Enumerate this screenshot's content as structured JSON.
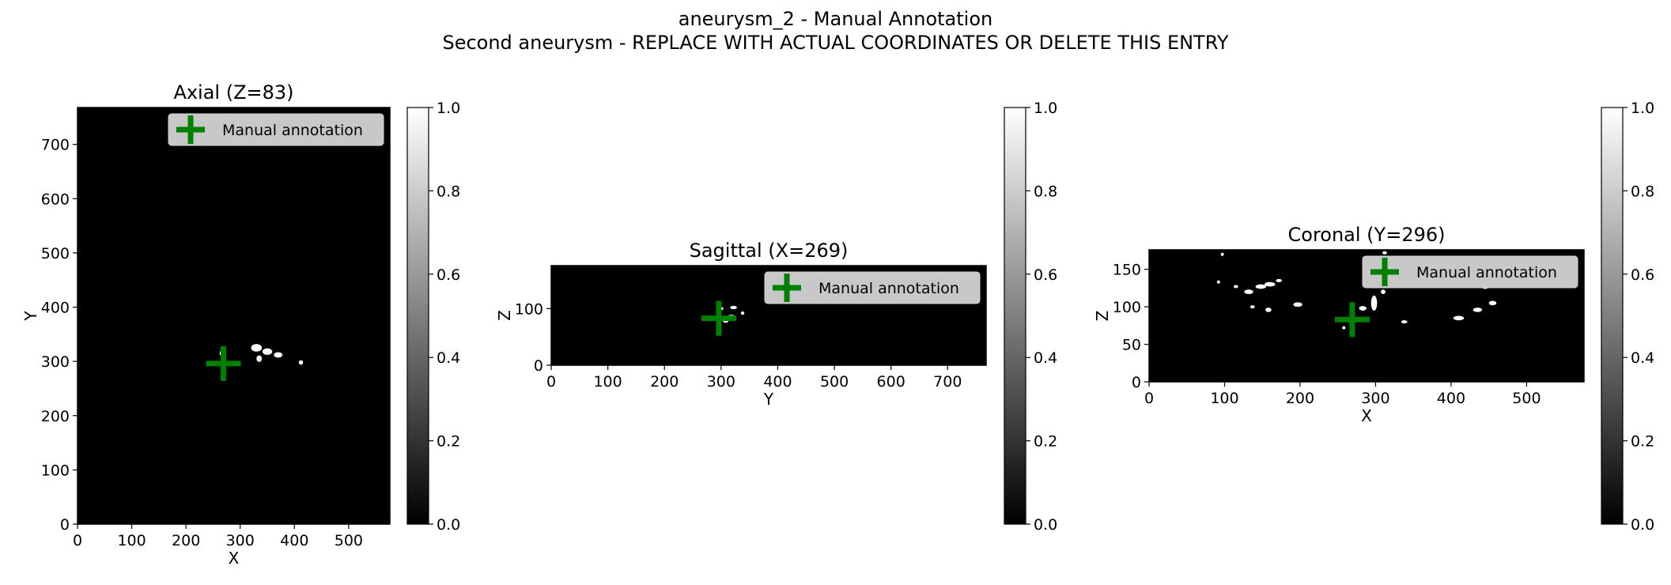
{
  "figure": {
    "title": "aneurysm_2 - Manual Annotation",
    "subtitle": "Second aneurysm - REPLACE WITH ACTUAL COORDINATES OR DELETE THIS ENTRY"
  },
  "colors": {
    "marker": "#008000",
    "background": "#000000",
    "vessel": "#ffffff",
    "legend_bg": "#c8c8c8"
  },
  "chart_data": [
    {
      "type": "heatmap",
      "title": "Axial (Z=83)",
      "xlabel": "X",
      "ylabel": "Y",
      "xlim": [
        0,
        576
      ],
      "ylim": [
        0,
        768
      ],
      "xticks": [
        0,
        100,
        200,
        300,
        400,
        500
      ],
      "yticks": [
        0,
        100,
        200,
        300,
        400,
        500,
        600,
        700
      ],
      "legend": {
        "label": "Manual annotation",
        "placement": "upper-right"
      },
      "marker": {
        "x": 269,
        "y": 296,
        "symbol": "plus"
      },
      "colorbar": {
        "range": [
          0.0,
          1.0
        ],
        "ticks": [
          "0.0",
          "0.2",
          "0.4",
          "0.6",
          "0.8",
          "1.0"
        ]
      },
      "blobs": [
        {
          "x": 268,
          "y": 315,
          "rx": 6,
          "ry": 6
        },
        {
          "x": 330,
          "y": 325,
          "rx": 10,
          "ry": 7
        },
        {
          "x": 350,
          "y": 318,
          "rx": 9,
          "ry": 6
        },
        {
          "x": 370,
          "y": 312,
          "rx": 8,
          "ry": 5
        },
        {
          "x": 335,
          "y": 305,
          "rx": 5,
          "ry": 6
        },
        {
          "x": 412,
          "y": 298,
          "rx": 4,
          "ry": 4
        }
      ]
    },
    {
      "type": "heatmap",
      "title": "Sagittal (X=269)",
      "xlabel": "Y",
      "ylabel": "Z",
      "xlim": [
        0,
        768
      ],
      "ylim": [
        0,
        176
      ],
      "xticks": [
        0,
        100,
        200,
        300,
        400,
        500,
        600,
        700
      ],
      "yticks": [
        0,
        100
      ],
      "legend": {
        "label": "Manual annotation",
        "placement": "upper-right"
      },
      "marker": {
        "x": 296,
        "y": 83,
        "symbol": "plus"
      },
      "colorbar": {
        "range": [
          0.0,
          1.0
        ],
        "ticks": [
          "0.0",
          "0.2",
          "0.4",
          "0.6",
          "0.8",
          "1.0"
        ]
      },
      "blobs": [
        {
          "x": 300,
          "y": 100,
          "rx": 4,
          "ry": 3
        },
        {
          "x": 322,
          "y": 102,
          "rx": 6,
          "ry": 3
        },
        {
          "x": 318,
          "y": 85,
          "rx": 9,
          "ry": 4
        },
        {
          "x": 308,
          "y": 78,
          "rx": 5,
          "ry": 3
        },
        {
          "x": 338,
          "y": 92,
          "rx": 3,
          "ry": 3
        }
      ]
    },
    {
      "type": "heatmap",
      "title": "Coronal (Y=296)",
      "xlabel": "X",
      "ylabel": "Z",
      "xlim": [
        0,
        576
      ],
      "ylim": [
        0,
        176
      ],
      "xticks": [
        0,
        100,
        200,
        300,
        400,
        500
      ],
      "yticks": [
        0,
        50,
        100,
        150
      ],
      "legend": {
        "label": "Manual annotation",
        "placement": "upper-right"
      },
      "marker": {
        "x": 269,
        "y": 83,
        "symbol": "plus"
      },
      "colorbar": {
        "range": [
          0.0,
          1.0
        ],
        "ticks": [
          "0.0",
          "0.2",
          "0.4",
          "0.6",
          "0.8",
          "1.0"
        ]
      },
      "blobs": [
        {
          "x": 97,
          "y": 170,
          "rx": 2,
          "ry": 2
        },
        {
          "x": 92,
          "y": 133,
          "rx": 2,
          "ry": 2
        },
        {
          "x": 115,
          "y": 127,
          "rx": 3,
          "ry": 2
        },
        {
          "x": 132,
          "y": 120,
          "rx": 6,
          "ry": 3
        },
        {
          "x": 148,
          "y": 127,
          "rx": 7,
          "ry": 3
        },
        {
          "x": 160,
          "y": 130,
          "rx": 7,
          "ry": 3
        },
        {
          "x": 172,
          "y": 135,
          "rx": 4,
          "ry": 2
        },
        {
          "x": 137,
          "y": 100,
          "rx": 3,
          "ry": 2
        },
        {
          "x": 158,
          "y": 96,
          "rx": 4,
          "ry": 3
        },
        {
          "x": 197,
          "y": 103,
          "rx": 6,
          "ry": 3
        },
        {
          "x": 258,
          "y": 72,
          "rx": 2,
          "ry": 2
        },
        {
          "x": 283,
          "y": 98,
          "rx": 5,
          "ry": 3
        },
        {
          "x": 298,
          "y": 105,
          "rx": 4,
          "ry": 10
        },
        {
          "x": 310,
          "y": 120,
          "rx": 3,
          "ry": 3
        },
        {
          "x": 338,
          "y": 80,
          "rx": 4,
          "ry": 2
        },
        {
          "x": 410,
          "y": 85,
          "rx": 7,
          "ry": 3
        },
        {
          "x": 435,
          "y": 96,
          "rx": 6,
          "ry": 3
        },
        {
          "x": 455,
          "y": 105,
          "rx": 5,
          "ry": 3
        },
        {
          "x": 445,
          "y": 126,
          "rx": 4,
          "ry": 2
        },
        {
          "x": 312,
          "y": 172,
          "rx": 3,
          "ry": 2
        }
      ]
    }
  ]
}
